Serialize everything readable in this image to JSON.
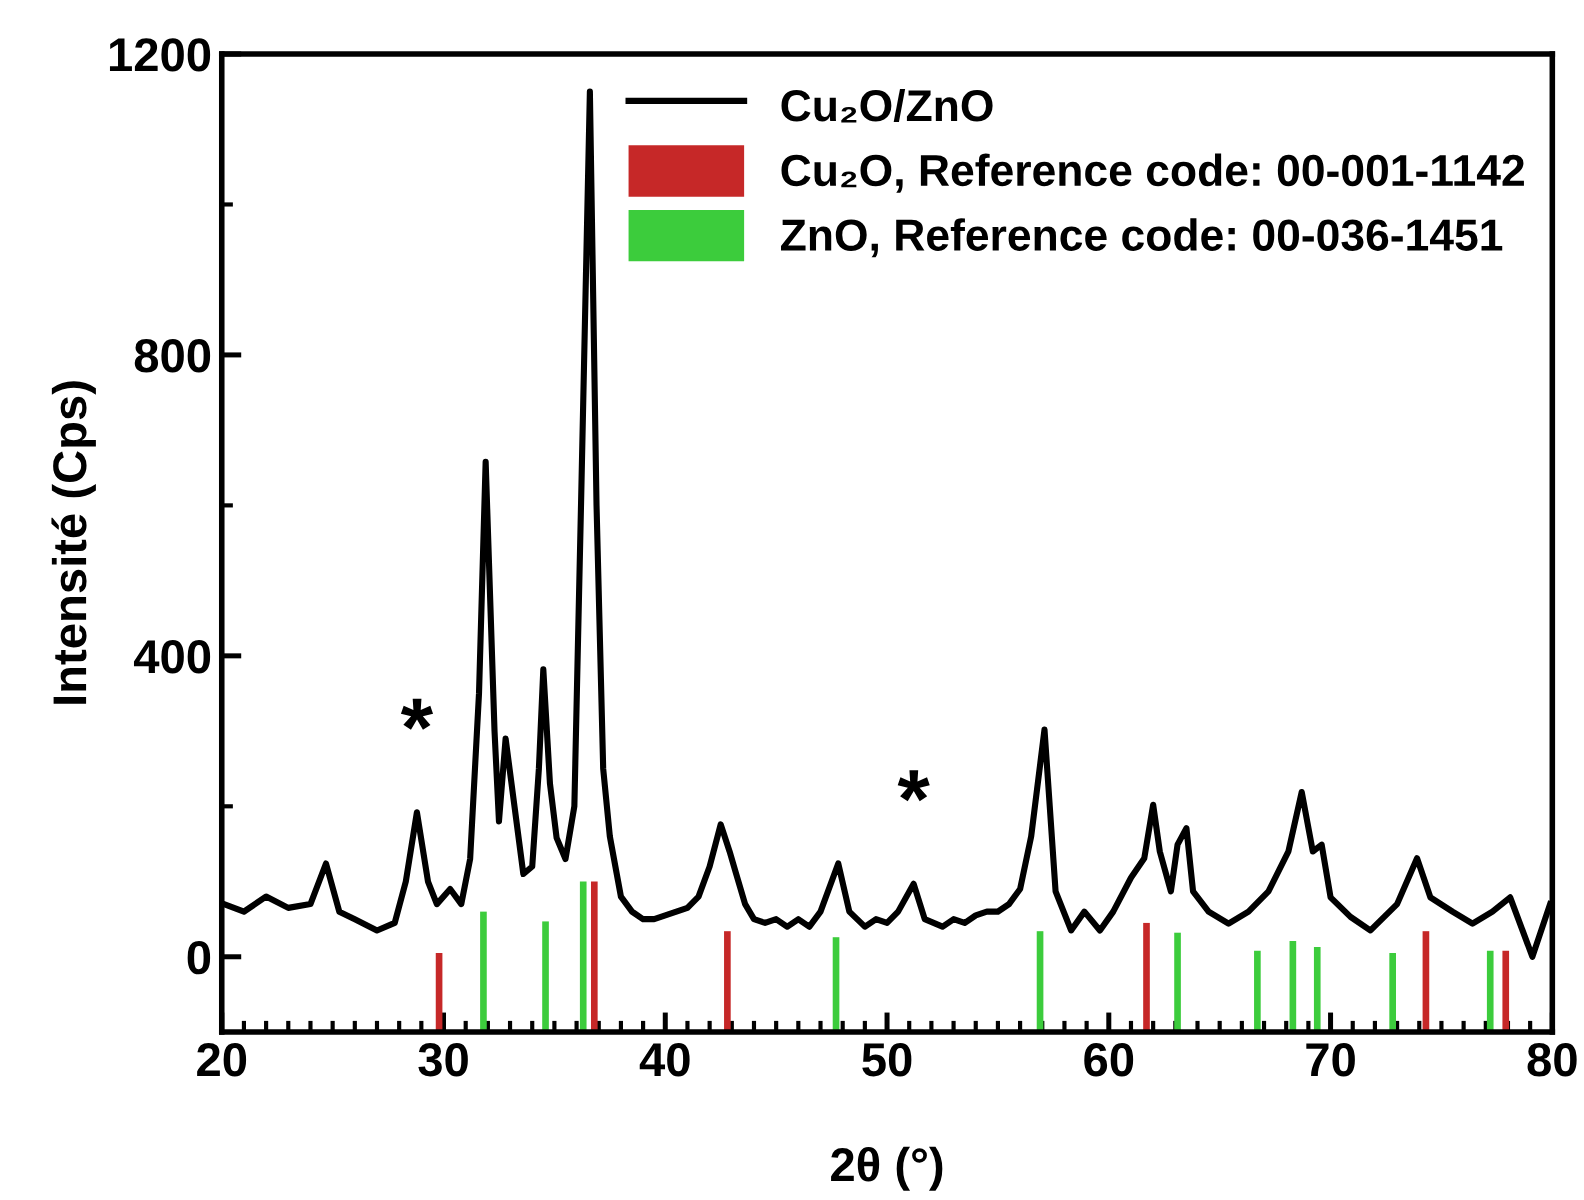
{
  "chart_data": {
    "type": "line",
    "xlabel": "2θ (°)",
    "ylabel": "Intensité (Cps)",
    "xlim": [
      20,
      80
    ],
    "ylim": [
      -100,
      1200
    ],
    "xticks": [
      20,
      {
        "value": 21,
        "label": null
      },
      {
        "value": 22,
        "label": null
      },
      {
        "value": 23,
        "label": null
      },
      {
        "value": 24,
        "label": null
      },
      {
        "value": 25,
        "label": null
      },
      {
        "value": 26,
        "label": null
      },
      {
        "value": 27,
        "label": null
      },
      {
        "value": 28,
        "label": null
      },
      {
        "value": 29,
        "label": null
      },
      30,
      {
        "value": 31,
        "label": null
      },
      {
        "value": 32,
        "label": null
      },
      {
        "value": 33,
        "label": null
      },
      {
        "value": 34,
        "label": null
      },
      {
        "value": 35,
        "label": null
      },
      {
        "value": 36,
        "label": null
      },
      {
        "value": 37,
        "label": null
      },
      {
        "value": 38,
        "label": null
      },
      {
        "value": 39,
        "label": null
      },
      40,
      {
        "value": 41,
        "label": null
      },
      {
        "value": 42,
        "label": null
      },
      {
        "value": 43,
        "label": null
      },
      {
        "value": 44,
        "label": null
      },
      {
        "value": 45,
        "label": null
      },
      {
        "value": 46,
        "label": null
      },
      {
        "value": 47,
        "label": null
      },
      {
        "value": 48,
        "label": null
      },
      {
        "value": 49,
        "label": null
      },
      50,
      {
        "value": 51,
        "label": null
      },
      {
        "value": 52,
        "label": null
      },
      {
        "value": 53,
        "label": null
      },
      {
        "value": 54,
        "label": null
      },
      {
        "value": 55,
        "label": null
      },
      {
        "value": 56,
        "label": null
      },
      {
        "value": 57,
        "label": null
      },
      {
        "value": 58,
        "label": null
      },
      {
        "value": 59,
        "label": null
      },
      60,
      {
        "value": 61,
        "label": null
      },
      {
        "value": 62,
        "label": null
      },
      {
        "value": 63,
        "label": null
      },
      {
        "value": 64,
        "label": null
      },
      {
        "value": 65,
        "label": null
      },
      {
        "value": 66,
        "label": null
      },
      {
        "value": 67,
        "label": null
      },
      {
        "value": 68,
        "label": null
      },
      {
        "value": 69,
        "label": null
      },
      70,
      {
        "value": 71,
        "label": null
      },
      {
        "value": 72,
        "label": null
      },
      {
        "value": 73,
        "label": null
      },
      {
        "value": 74,
        "label": null
      },
      {
        "value": 75,
        "label": null
      },
      {
        "value": 76,
        "label": null
      },
      {
        "value": 77,
        "label": null
      },
      {
        "value": 78,
        "label": null
      },
      {
        "value": 79,
        "label": null
      },
      80
    ],
    "yticks": [
      0,
      {
        "value": 200,
        "label": null
      },
      400,
      {
        "value": 600,
        "label": null
      },
      800,
      {
        "value": 1000,
        "label": null
      },
      1200
    ],
    "grid": false,
    "legend": "top right",
    "annotations": [
      {
        "text": "*",
        "x": 28.8,
        "y": 192
      },
      {
        "text": "*",
        "x": 51.2,
        "y": 97
      }
    ],
    "series": [
      {
        "name": "Cu₂O/ZnO",
        "color": "#000000",
        "x": [
          20.1,
          21,
          22,
          23,
          24,
          24.7,
          25.3,
          26,
          27,
          27.8,
          28.3,
          28.8,
          29.3,
          29.7,
          30.3,
          30.8,
          31.2,
          31.6,
          31.9,
          32.3,
          32.5,
          32.8,
          33.2,
          33.6,
          34.0,
          34.3,
          34.5,
          34.8,
          35.1,
          35.5,
          35.9,
          36.2,
          36.6,
          36.9,
          37.2,
          37.5,
          38,
          38.5,
          39,
          39.5,
          40,
          40.5,
          41,
          41.5,
          42,
          42.5,
          42.9,
          43.2,
          43.6,
          44,
          44.5,
          45,
          45.5,
          46,
          46.5,
          47,
          47.8,
          48.3,
          49,
          49.5,
          50,
          50.5,
          51.2,
          51.7,
          52.5,
          53,
          53.5,
          54,
          54.5,
          55,
          55.5,
          56,
          56.5,
          57.1,
          57.6,
          58.3,
          58.9,
          59.6,
          60.2,
          61.0,
          61.6,
          62.0,
          62.3,
          62.8,
          63.1,
          63.5,
          63.8,
          64.5,
          65.4,
          66.3,
          67.2,
          68.1,
          68.7,
          69.2,
          69.6,
          70.0,
          70.9,
          71.8,
          73.0,
          73.9,
          74.5,
          75.5,
          76.4,
          77.3,
          78.1,
          79.1,
          79.9
        ],
        "values": [
          70,
          60,
          80,
          65,
          70,
          124,
          60,
          50,
          35,
          45,
          100,
          192,
          100,
          70,
          90,
          70,
          130,
          350,
          658,
          300,
          180,
          290,
          200,
          110,
          120,
          250,
          382,
          230,
          158,
          130,
          200,
          600,
          1150,
          600,
          250,
          160,
          80,
          60,
          50,
          50,
          55,
          60,
          65,
          80,
          120,
          176,
          140,
          110,
          70,
          50,
          45,
          50,
          40,
          50,
          40,
          60,
          124,
          60,
          40,
          50,
          45,
          60,
          97,
          50,
          40,
          50,
          45,
          55,
          60,
          60,
          70,
          90,
          160,
          302,
          87,
          35,
          60,
          35,
          60,
          105,
          131,
          202,
          140,
          87,
          149,
          171,
          87,
          60,
          44,
          60,
          87,
          140,
          219,
          140,
          149,
          79,
          53,
          35,
          70,
          131,
          79,
          60,
          44,
          60,
          79,
          0,
          70
        ]
      },
      {
        "name": "Cu₂O, Reference code: 00-001-1142",
        "type": "bar",
        "color": "#c62828",
        "x": [
          29.8,
          36.8,
          42.8,
          61.7,
          74.3,
          77.9
        ],
        "values": [
          105,
          200,
          134,
          145,
          134,
          108
        ],
        "base": [
          -100,
          -100,
          -100,
          -100,
          -100,
          -100
        ]
      },
      {
        "name": "ZnO, Reference code: 00-036-1451",
        "type": "bar",
        "color": "#3ccc3c",
        "x": [
          31.8,
          34.6,
          36.3,
          47.7,
          56.9,
          63.1,
          66.7,
          68.3,
          69.4,
          72.8,
          77.2
        ],
        "values": [
          160,
          147,
          200,
          126,
          134,
          132,
          108,
          121,
          113,
          105,
          108
        ],
        "base": [
          -100,
          -100,
          -100,
          -100,
          -100,
          -100,
          -100,
          -100,
          -100,
          -100,
          -100
        ]
      }
    ]
  }
}
